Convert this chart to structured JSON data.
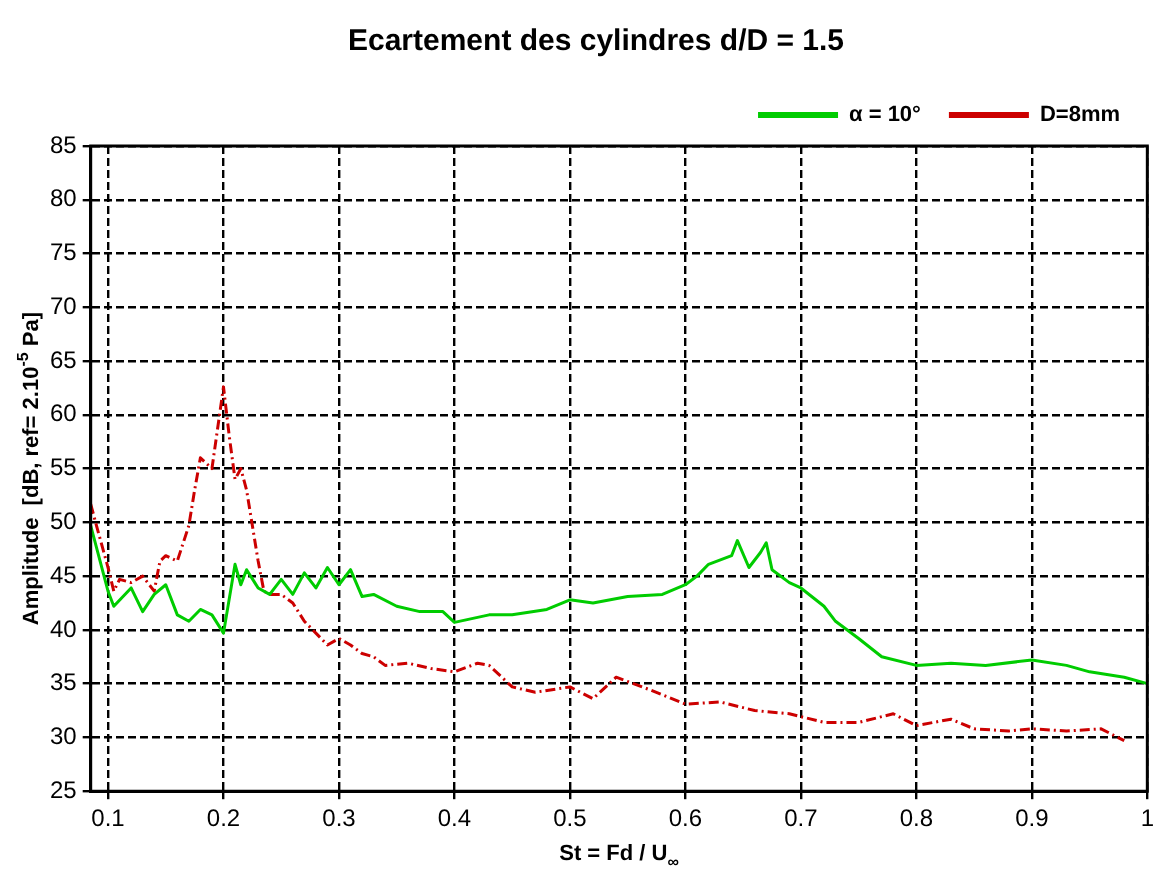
{
  "chart_data": {
    "type": "line",
    "title": "Ecartement des cylindres d/D = 1.5",
    "xlabel": "St = Fd / U$_{∞}$",
    "ylabel": "Amplitude  [dB, ref= 2.10$^{-5}$ Pa]",
    "xlim": [
      0.085,
      1.0
    ],
    "xticks": [
      0.1,
      0.2,
      0.3,
      0.4,
      0.5,
      0.6,
      0.7,
      0.8,
      0.9,
      1
    ],
    "ylim": [
      25,
      85
    ],
    "yticks": [
      25,
      30,
      35,
      40,
      45,
      50,
      55,
      60,
      65,
      70,
      75,
      80,
      85
    ],
    "grid": true,
    "legend": "top right",
    "marker": "none",
    "series": [
      {
        "name": "α = 10°",
        "color": "#00cc00",
        "line_style": "solid",
        "x": [
          0.085,
          0.1,
          0.105,
          0.12,
          0.13,
          0.14,
          0.15,
          0.16,
          0.17,
          0.18,
          0.19,
          0.2,
          0.21,
          0.215,
          0.22,
          0.23,
          0.24,
          0.25,
          0.26,
          0.27,
          0.28,
          0.29,
          0.3,
          0.31,
          0.32,
          0.33,
          0.35,
          0.37,
          0.39,
          0.4,
          0.43,
          0.45,
          0.48,
          0.5,
          0.52,
          0.55,
          0.58,
          0.6,
          0.61,
          0.62,
          0.64,
          0.645,
          0.655,
          0.665,
          0.67,
          0.675,
          0.69,
          0.7,
          0.72,
          0.73,
          0.75,
          0.77,
          0.8,
          0.83,
          0.86,
          0.9,
          0.93,
          0.95,
          0.98,
          1.0
        ],
        "values": [
          49.7,
          43.6,
          42.2,
          43.9,
          41.7,
          43.3,
          44.2,
          41.4,
          40.8,
          41.9,
          41.4,
          39.7,
          46.1,
          44.2,
          45.6,
          43.9,
          43.3,
          44.7,
          43.3,
          45.3,
          43.9,
          45.8,
          44.2,
          45.6,
          43.1,
          43.3,
          42.2,
          41.7,
          41.7,
          40.7,
          41.4,
          41.4,
          41.9,
          42.8,
          42.5,
          43.1,
          43.3,
          44.2,
          45,
          46.1,
          46.9,
          48.3,
          45.8,
          47.2,
          48.1,
          45.6,
          44.4,
          43.9,
          42.2,
          40.8,
          39.2,
          37.5,
          36.7,
          36.9,
          36.7,
          37.2,
          36.7,
          36.1,
          35.6,
          35
        ]
      },
      {
        "name": "D=8mm",
        "color": "#cc0000",
        "line_style": "dashed",
        "x": [
          0.085,
          0.09,
          0.1,
          0.105,
          0.11,
          0.12,
          0.13,
          0.14,
          0.145,
          0.15,
          0.16,
          0.17,
          0.175,
          0.18,
          0.19,
          0.2,
          0.205,
          0.21,
          0.215,
          0.22,
          0.225,
          0.23,
          0.235,
          0.24,
          0.25,
          0.26,
          0.27,
          0.28,
          0.29,
          0.3,
          0.31,
          0.32,
          0.33,
          0.34,
          0.36,
          0.38,
          0.4,
          0.42,
          0.43,
          0.45,
          0.47,
          0.5,
          0.52,
          0.54,
          0.57,
          0.6,
          0.63,
          0.66,
          0.69,
          0.72,
          0.75,
          0.78,
          0.8,
          0.83,
          0.85,
          0.88,
          0.9,
          0.93,
          0.96,
          0.98
        ],
        "values": [
          51.7,
          49.7,
          45.8,
          43.6,
          44.7,
          44.4,
          45,
          43.6,
          46.4,
          46.9,
          46.4,
          49.7,
          53,
          56,
          55,
          62.6,
          58,
          54,
          55,
          53,
          49.7,
          46.4,
          43.6,
          43.3,
          43.3,
          42.5,
          40.8,
          39.7,
          38.6,
          39.2,
          38.6,
          37.8,
          37.5,
          36.7,
          36.9,
          36.4,
          36.1,
          36.9,
          36.7,
          34.7,
          34.2,
          34.7,
          33.6,
          35.6,
          34.4,
          33.1,
          33.3,
          32.5,
          32.2,
          31.4,
          31.4,
          32.2,
          31.1,
          31.7,
          30.8,
          30.6,
          30.8,
          30.6,
          30.8,
          29.7
        ]
      }
    ]
  }
}
